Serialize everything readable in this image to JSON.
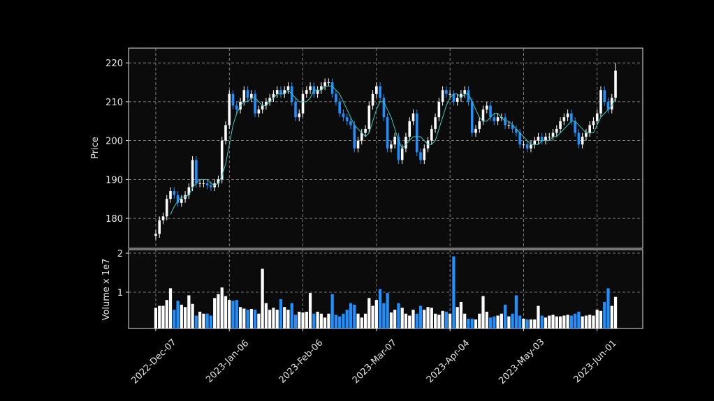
{
  "chart_data": {
    "type": "candlestick",
    "ylabel": "Price",
    "volume_label": "Volume x 1e7",
    "up_color": "#ffffff",
    "down_color": "#1e90ff",
    "mav_color": "#40c8b8",
    "grid": true,
    "xlim": [
      -7.4,
      132.4
    ],
    "xticks": [
      {
        "value": 0,
        "label": "2022-Dec-07"
      },
      {
        "value": 20,
        "label": "2023-Jan-06"
      },
      {
        "value": 40,
        "label": "2023-Feb-06"
      },
      {
        "value": 60,
        "label": "2023-Mar-07"
      },
      {
        "value": 80,
        "label": "2023-Apr-04"
      },
      {
        "value": 100,
        "label": "2023-May-03"
      },
      {
        "value": 120,
        "label": "2023-Jun-01"
      }
    ],
    "ylim": [
      172.3,
      223.8
    ],
    "yticks": [
      180,
      190,
      200,
      210,
      220
    ],
    "volume_ylim": [
      0.07,
      2.09
    ],
    "volume_yticks": [
      1,
      2
    ],
    "open": [
      175.5,
      176,
      179.5,
      180.5,
      185,
      187,
      186,
      184,
      185,
      186,
      188,
      195,
      189,
      189,
      189,
      188.5,
      188,
      189,
      190,
      200,
      204,
      212,
      209,
      208,
      210,
      213,
      211,
      212,
      207,
      208,
      209,
      210,
      211,
      212,
      213,
      212,
      213,
      214,
      210,
      206,
      207,
      212,
      213,
      214,
      212,
      213,
      214,
      215,
      215,
      212,
      210,
      207,
      206,
      205,
      204,
      198,
      200,
      202,
      203,
      209,
      212,
      214,
      211,
      206,
      198,
      199,
      201,
      195,
      198,
      201,
      205,
      207,
      197,
      195,
      198,
      200,
      203,
      206,
      210,
      213,
      212,
      212,
      210,
      211,
      212,
      213,
      210,
      202,
      203,
      205,
      208,
      209,
      206,
      205,
      206,
      206,
      204,
      204,
      203,
      202,
      199,
      199,
      198,
      199,
      200,
      201,
      200,
      201,
      201,
      202,
      203,
      205,
      206,
      207,
      205,
      202,
      199,
      201,
      202,
      204,
      205,
      207,
      213,
      210,
      208,
      211
    ],
    "high": [
      177,
      180.5,
      181.5,
      186,
      188,
      188,
      187,
      186,
      187,
      189,
      196,
      196,
      190,
      190,
      190,
      189.5,
      190,
      191,
      201,
      205,
      213,
      213,
      210,
      211,
      214,
      214,
      213,
      213,
      209,
      210,
      211,
      212,
      213,
      214,
      214,
      214,
      215,
      215,
      211,
      208,
      213,
      214,
      215,
      215,
      214,
      215,
      216,
      216,
      216,
      213,
      211,
      208,
      207,
      206,
      205,
      201,
      203,
      204,
      210,
      213,
      215,
      215,
      212,
      207,
      200,
      202,
      202,
      199,
      202,
      206,
      208,
      208,
      198,
      199,
      201,
      204,
      207,
      211,
      214,
      214,
      213,
      213,
      212,
      213,
      214,
      214,
      211,
      204,
      206,
      209,
      210,
      210,
      207,
      207,
      207,
      207,
      205,
      205,
      204,
      203,
      200,
      200,
      200,
      201,
      202,
      202,
      202,
      202,
      203,
      204,
      206,
      207,
      208,
      208,
      206,
      203,
      202,
      203,
      205,
      206,
      208,
      214,
      214,
      211,
      212,
      220
    ],
    "low": [
      174.5,
      175,
      178.5,
      179.5,
      184,
      185,
      183,
      183,
      184,
      185,
      187,
      188,
      188,
      188,
      187.5,
      187,
      187,
      188,
      189,
      199,
      203,
      208,
      207,
      207,
      209,
      210,
      210,
      206,
      206,
      207,
      208,
      209,
      210,
      211,
      211,
      211,
      212,
      209,
      205,
      205,
      206,
      211,
      212,
      211,
      211,
      212,
      213,
      214,
      211,
      209,
      206,
      205,
      204,
      203,
      197,
      197,
      199,
      201,
      202,
      208,
      211,
      210,
      205,
      197,
      197,
      198,
      194,
      194,
      197,
      200,
      204,
      196,
      194,
      194,
      197,
      199,
      202,
      205,
      209,
      211,
      211,
      209,
      209,
      210,
      211,
      209,
      201,
      201,
      202,
      204,
      207,
      205,
      204,
      204,
      205,
      203,
      203,
      202,
      201,
      198,
      198,
      197,
      197,
      198,
      199,
      199,
      199,
      200,
      200,
      201,
      202,
      204,
      205,
      204,
      201,
      198,
      198,
      200,
      201,
      203,
      204,
      206,
      209,
      207,
      207,
      210
    ],
    "close": [
      176,
      179.5,
      180.5,
      185,
      187,
      186,
      184,
      185,
      186,
      188,
      195,
      189,
      189,
      189,
      188.5,
      188,
      189,
      190,
      200,
      204,
      212,
      209,
      208,
      210,
      213,
      211,
      212,
      207,
      208,
      209,
      210,
      211,
      212,
      213,
      212,
      213,
      214,
      210,
      206,
      207,
      212,
      213,
      214,
      212,
      213,
      214,
      215,
      215,
      212,
      210,
      207,
      206,
      205,
      204,
      198,
      200,
      202,
      203,
      209,
      212,
      214,
      211,
      206,
      198,
      199,
      201,
      195,
      198,
      201,
      205,
      207,
      197,
      195,
      198,
      200,
      203,
      206,
      210,
      213,
      212,
      212,
      210,
      211,
      212,
      213,
      210,
      202,
      203,
      205,
      208,
      209,
      206,
      205,
      206,
      206,
      204,
      204,
      203,
      202,
      199,
      199,
      198,
      199,
      200,
      201,
      200,
      201,
      201,
      202,
      203,
      205,
      206,
      207,
      205,
      202,
      199,
      201,
      202,
      204,
      205,
      207,
      213,
      210,
      208,
      211,
      218
    ],
    "volume": [
      0.6,
      0.65,
      0.65,
      0.8,
      1.1,
      0.55,
      0.78,
      0.68,
      0.62,
      0.92,
      0.7,
      0.4,
      0.5,
      0.45,
      0.45,
      0.4,
      0.85,
      0.95,
      1.12,
      0.9,
      0.8,
      0.78,
      0.8,
      0.62,
      0.58,
      0.55,
      0.57,
      0.55,
      0.45,
      1.6,
      0.72,
      0.55,
      0.6,
      0.55,
      0.82,
      0.62,
      0.55,
      0.72,
      0.42,
      0.5,
      0.48,
      0.5,
      0.98,
      0.45,
      0.5,
      0.45,
      0.35,
      0.45,
      0.95,
      0.42,
      0.38,
      0.45,
      0.55,
      0.72,
      0.68,
      0.45,
      0.35,
      0.45,
      0.85,
      0.65,
      0.8,
      1.08,
      0.72,
      0.98,
      0.48,
      0.55,
      0.72,
      0.6,
      0.45,
      0.4,
      0.55,
      0.45,
      0.65,
      0.55,
      0.62,
      0.6,
      0.45,
      0.42,
      0.52,
      0.5,
      0.45,
      1.92,
      0.62,
      0.75,
      0.45,
      0.32,
      0.32,
      0.3,
      0.45,
      0.9,
      0.5,
      0.35,
      0.38,
      0.4,
      0.45,
      0.68,
      0.38,
      0.45,
      0.92,
      0.4,
      0.32,
      0.3,
      0.3,
      0.3,
      0.65,
      0.4,
      0.35,
      0.4,
      0.42,
      0.38,
      0.38,
      0.4,
      0.42,
      0.4,
      0.45,
      0.5,
      0.38,
      0.4,
      0.42,
      0.4,
      0.55,
      0.52,
      0.75,
      1.1,
      0.65,
      0.88
    ],
    "mav": [
      null,
      null,
      null,
      null,
      181,
      183,
      184.5,
      185.5,
      185.5,
      186,
      188,
      189,
      190,
      190,
      190,
      189,
      188.5,
      189,
      191,
      194,
      199,
      204,
      207,
      209,
      210,
      210,
      211,
      211,
      210,
      209,
      209,
      210,
      211,
      212,
      212,
      212,
      213,
      212,
      211,
      210,
      210,
      210,
      211,
      213,
      213,
      213,
      214,
      214,
      214,
      213,
      212,
      210,
      208,
      206,
      204,
      203,
      202,
      201,
      202,
      205,
      208,
      210,
      210,
      208,
      206,
      203,
      200,
      198,
      199,
      200,
      201,
      201,
      201,
      200,
      199,
      199,
      200,
      203,
      206,
      209,
      211,
      212,
      212,
      211,
      212,
      212,
      210,
      208,
      206,
      205,
      205,
      206,
      207,
      207,
      206,
      205,
      205,
      204,
      203,
      202,
      201,
      200,
      199,
      199,
      199,
      200,
      200,
      200,
      201,
      201,
      202,
      203,
      204,
      205,
      205,
      204,
      203,
      202,
      202,
      202,
      204,
      206,
      207,
      208,
      209,
      211
    ]
  }
}
